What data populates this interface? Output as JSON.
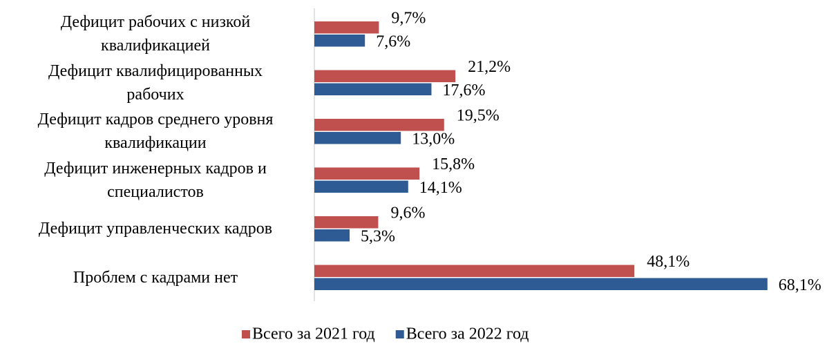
{
  "chart_data": {
    "type": "bar",
    "orientation": "horizontal",
    "categories": [
      "Дефицит рабочих с низкой\nквалификацией",
      "Дефицит квалифицированных\nрабочих",
      "Дефицит кадров среднего уровня\nквалификации",
      "Дефицит инженерных кадров и\nспециалистов",
      "Дефицит управленческих кадров",
      "Проблем с кадрами нет"
    ],
    "series": [
      {
        "name": "Всего за 2021 год",
        "color": "#c0504d",
        "values": [
          9.7,
          21.2,
          19.5,
          15.8,
          9.6,
          48.1
        ],
        "value_labels": [
          "9,7%",
          "21,2%",
          "19,5%",
          "15,8%",
          "9,6%",
          "48,1%"
        ]
      },
      {
        "name": "Всего за 2022 год",
        "color": "#2f5b95",
        "values": [
          7.6,
          17.6,
          13.0,
          14.1,
          5.3,
          68.1
        ],
        "value_labels": [
          "7,6%",
          "17,6%",
          "13,0%",
          "14,1%",
          "5,3%",
          "68,1%"
        ]
      }
    ],
    "legend": "bottom"
  }
}
